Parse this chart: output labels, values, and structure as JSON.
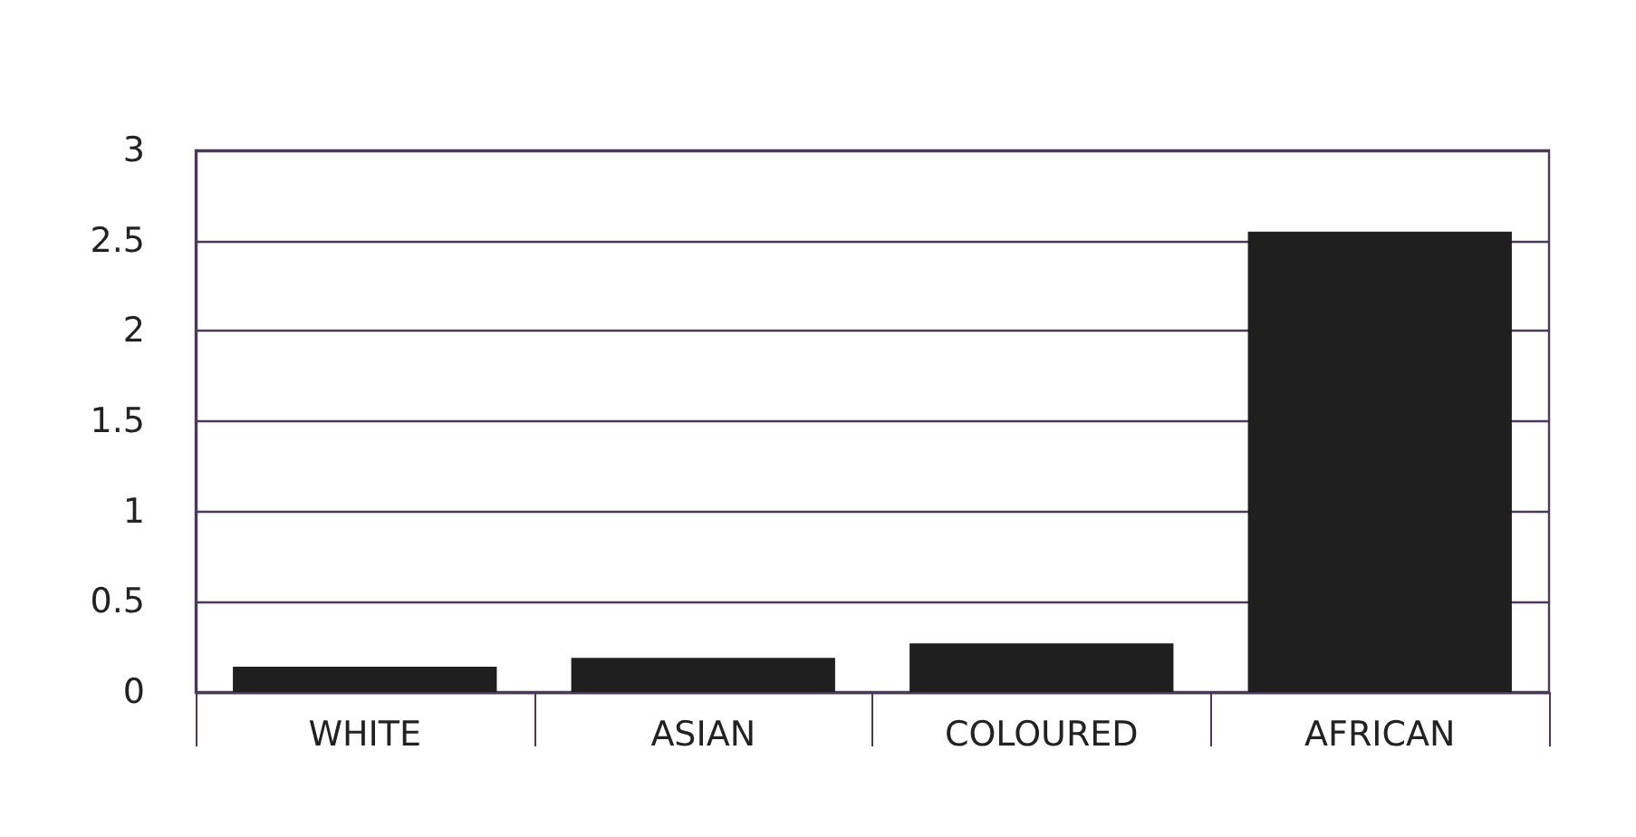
{
  "chart_data": {
    "type": "bar",
    "categories": [
      "WHITE",
      "ASIAN",
      "COLOURED",
      "AFRICAN"
    ],
    "values": [
      0.14,
      0.19,
      0.27,
      2.55
    ],
    "color": "#1f1f1f",
    "ylim": [
      0,
      3
    ],
    "yticks": [
      0,
      0.5,
      1,
      1.5,
      2,
      2.5,
      3
    ],
    "grid": "y"
  }
}
